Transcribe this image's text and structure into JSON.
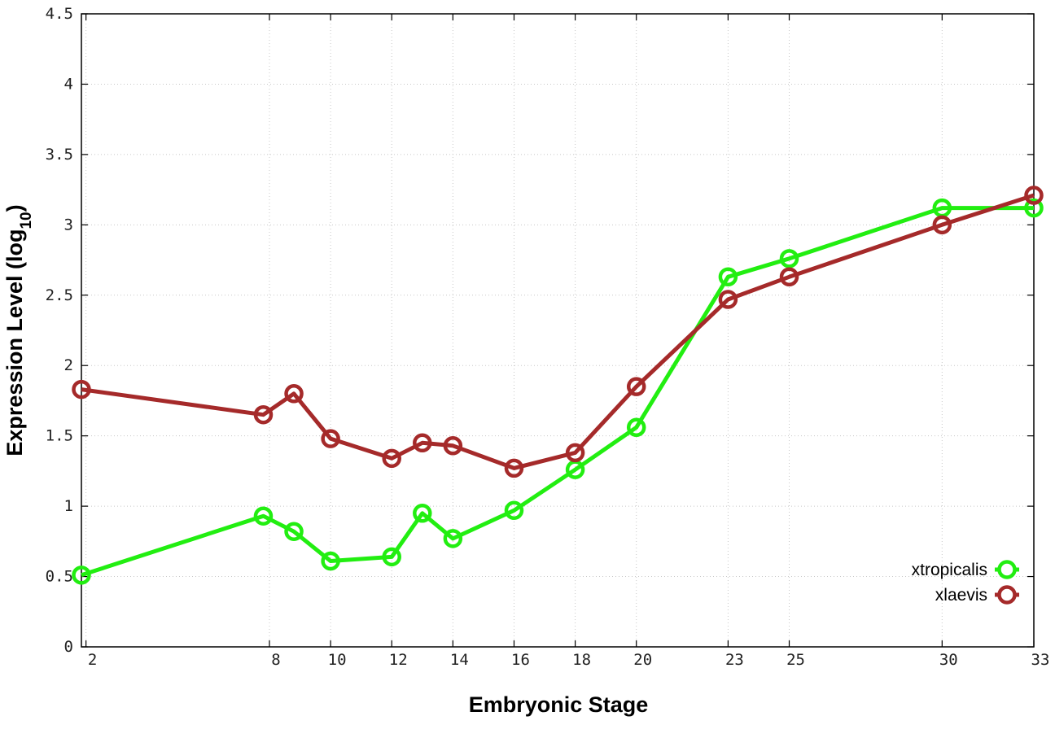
{
  "chart_data": {
    "type": "line",
    "xlabel": "Embryonic Stage",
    "ylabel_main": "Expression Level (log",
    "ylabel_sub": "10",
    "ylabel_close": ")",
    "x_ticks": [
      2,
      8,
      10,
      12,
      14,
      16,
      18,
      20,
      23,
      25,
      30,
      33
    ],
    "y_ticks": [
      "0",
      "0.5",
      "1",
      "1.5",
      "2",
      "2.5",
      "3",
      "3.5",
      "4",
      "4.5"
    ],
    "x_positions": [
      1.85,
      7.8,
      8.8,
      10.0,
      12.0,
      13.0,
      14.0,
      16.0,
      18.0,
      20.0,
      23.0,
      25.0,
      30.0,
      33.0
    ],
    "xlim": [
      1.85,
      33.0
    ],
    "ylim": [
      0,
      4.5
    ],
    "grid": true,
    "legend_position": "bottom-right",
    "series": [
      {
        "name": "xtropicalis",
        "color": "#22ee11",
        "values": [
          0.51,
          0.93,
          0.82,
          0.61,
          0.64,
          0.95,
          0.77,
          0.97,
          1.26,
          1.56,
          2.63,
          2.76,
          3.12,
          3.12
        ]
      },
      {
        "name": "xlaevis",
        "color": "#a52a2a",
        "values": [
          1.83,
          1.65,
          1.8,
          1.48,
          1.34,
          1.45,
          1.43,
          1.27,
          1.38,
          1.85,
          2.47,
          2.63,
          3.0,
          3.21
        ]
      }
    ]
  }
}
